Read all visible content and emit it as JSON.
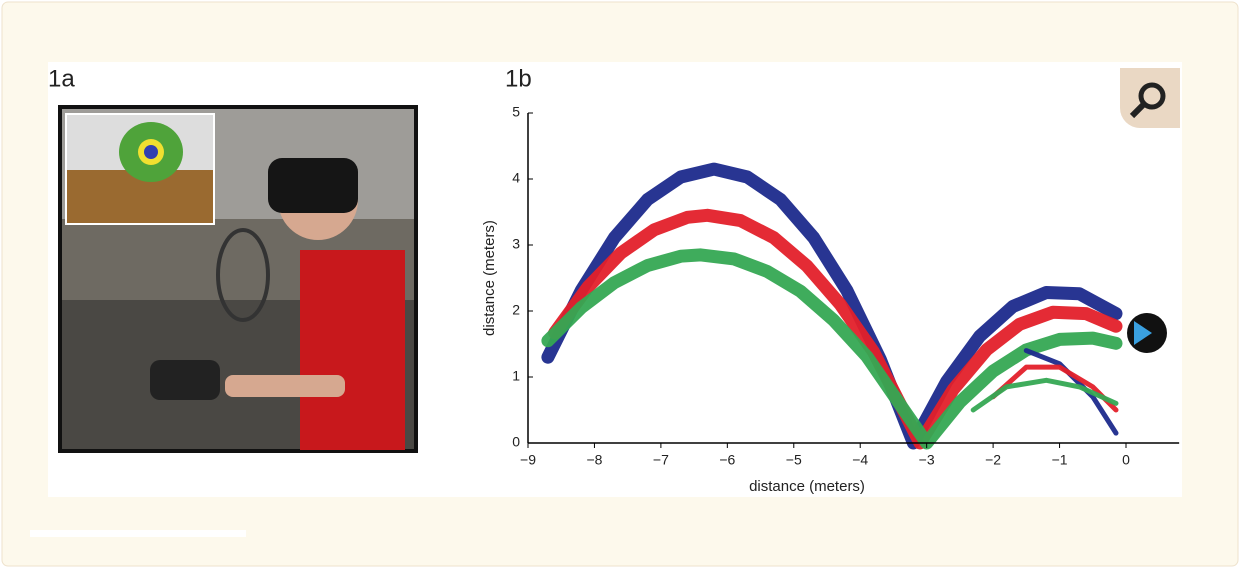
{
  "panels": {
    "a": {
      "label": "1a"
    },
    "b": {
      "label": "1b"
    }
  },
  "chart_data": {
    "type": "line",
    "xlabel": "distance (meters)",
    "ylabel": "distance (meters)",
    "xlim": [
      -9,
      0.8
    ],
    "ylim": [
      0,
      5
    ],
    "xticks": [
      {
        "value": -9,
        "label": "−9"
      },
      {
        "value": -8,
        "label": "−8"
      },
      {
        "value": -7,
        "label": "−7"
      },
      {
        "value": -6,
        "label": "−6"
      },
      {
        "value": -5,
        "label": "−5"
      },
      {
        "value": -4,
        "label": "−4"
      },
      {
        "value": -3,
        "label": "−3"
      },
      {
        "value": -2,
        "label": "−2"
      },
      {
        "value": -1,
        "label": "−1"
      },
      0
    ],
    "yticks": [
      0,
      1,
      2,
      3,
      4,
      5
    ],
    "series": [
      {
        "color": "#1c2a8c",
        "x": [
          -8.7,
          -8.2,
          -7.7,
          -7.2,
          -6.7,
          -6.2,
          -5.7,
          -5.2,
          -4.7,
          -4.2,
          -3.7,
          -3.2,
          -2.7,
          -2.2,
          -1.7,
          -1.2,
          -0.7,
          -0.15
        ],
        "values": [
          1.3,
          2.31,
          3.11,
          3.69,
          4.03,
          4.15,
          4.03,
          3.69,
          3.11,
          2.31,
          1.27,
          0,
          0.93,
          1.62,
          2.07,
          2.28,
          2.26,
          1.96
        ]
      },
      {
        "color": "#e3202a",
        "x": [
          -8.6,
          -8.1,
          -7.6,
          -7.1,
          -6.6,
          -6.3,
          -5.8,
          -5.3,
          -4.8,
          -4.3,
          -3.8,
          -3.1,
          -2.6,
          -2.1,
          -1.6,
          -1.1,
          -0.6,
          -0.15
        ],
        "values": [
          1.67,
          2.36,
          2.88,
          3.23,
          3.42,
          3.45,
          3.37,
          3.11,
          2.68,
          2.1,
          1.38,
          0,
          0.81,
          1.41,
          1.8,
          1.98,
          1.96,
          1.77
        ]
      },
      {
        "color": "#35a853",
        "x": [
          -8.7,
          -8.2,
          -7.7,
          -7.2,
          -6.7,
          -6.4,
          -5.9,
          -5.4,
          -4.9,
          -4.4,
          -3.9,
          -3.0,
          -2.5,
          -2.0,
          -1.5,
          -1.0,
          -0.5,
          -0.15
        ],
        "values": [
          1.55,
          2.05,
          2.43,
          2.69,
          2.83,
          2.85,
          2.79,
          2.6,
          2.3,
          1.86,
          1.31,
          0,
          0.62,
          1.09,
          1.41,
          1.57,
          1.59,
          1.51
        ]
      },
      {
        "color": "#1c2a8c",
        "x": [
          -1.5,
          -1.0,
          -0.5,
          -0.15
        ],
        "values": [
          1.4,
          1.2,
          0.7,
          0.15
        ]
      },
      {
        "color": "#e3202a",
        "x": [
          -2.0,
          -1.5,
          -1.0,
          -0.5,
          -0.15
        ],
        "values": [
          0.7,
          1.15,
          1.15,
          0.85,
          0.5
        ]
      },
      {
        "color": "#35a853",
        "x": [
          -2.3,
          -1.8,
          -1.2,
          -0.7,
          -0.15
        ],
        "values": [
          0.5,
          0.85,
          0.95,
          0.85,
          0.6
        ]
      }
    ]
  }
}
